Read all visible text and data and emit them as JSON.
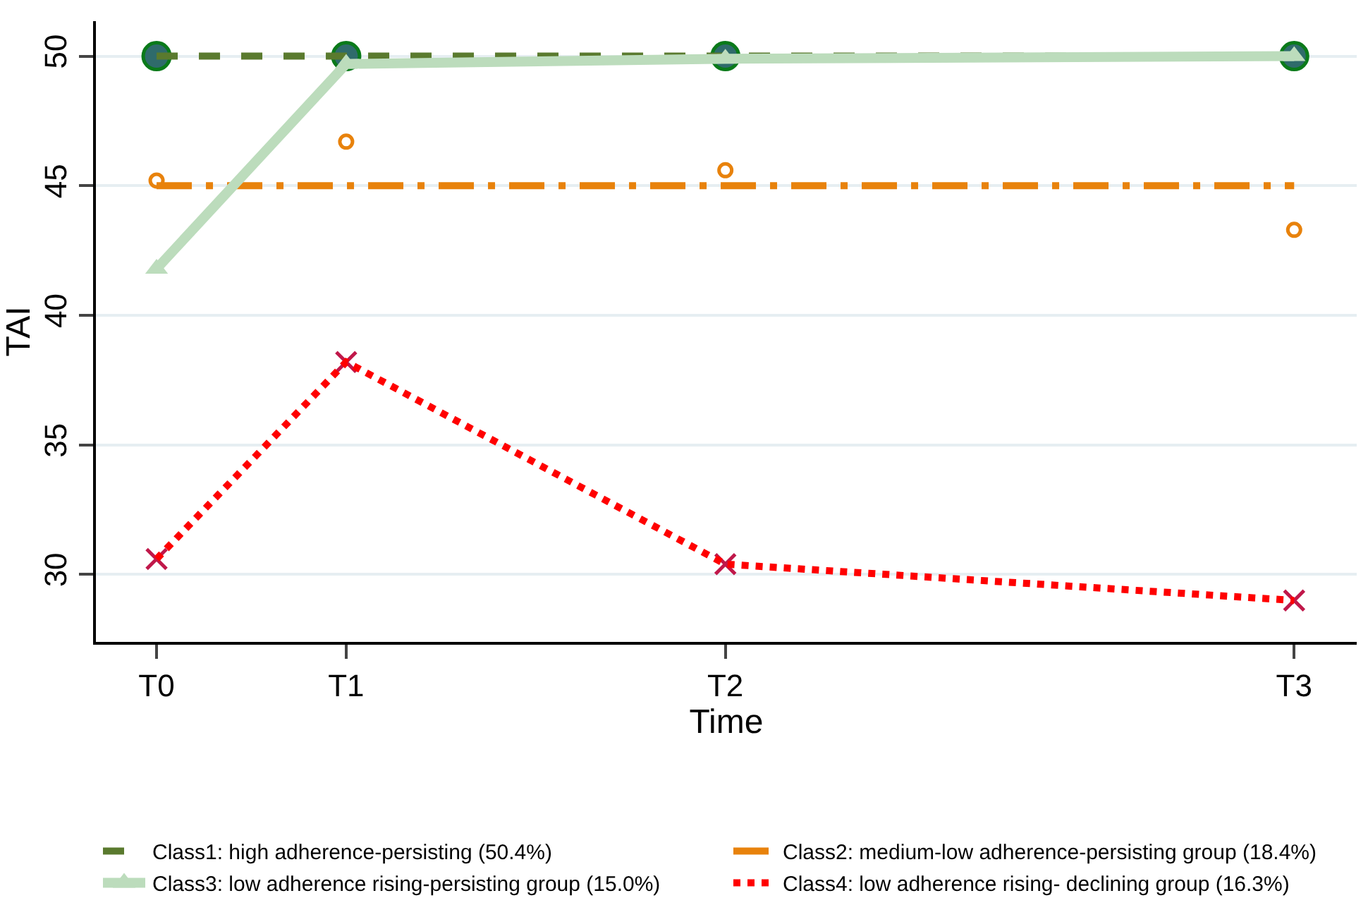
{
  "chart_data": {
    "type": "line",
    "xlabel": "Time",
    "ylabel": "TAI",
    "categories": [
      "T0",
      "T1",
      null,
      "T2",
      null,
      null,
      "T3"
    ],
    "ylim": [
      27.4,
      51.35
    ],
    "yticks": [
      30,
      35,
      40,
      45,
      50
    ],
    "grid": "y",
    "legend": "bottom",
    "series": [
      {
        "name": "Class1: high adherence-persisting (50.4%)",
        "color": "#5a7a2e",
        "values": [
          50,
          50,
          null,
          50,
          null,
          null,
          50
        ],
        "line_style": "dashed",
        "marker": "none"
      },
      {
        "name": "Class2: medium-low adherence-persisting group (18.4%)",
        "color": "#e8820c",
        "values": [
          45,
          45,
          null,
          45,
          null,
          null,
          45
        ],
        "line_style": "dashdot",
        "marker": "none"
      },
      {
        "name": "Class3: low adherence rising-persisting group (15.0%)",
        "color": "#bcdcbc",
        "values": [
          41.8,
          49.7,
          null,
          49.9,
          null,
          null,
          50
        ],
        "line_style": "solid",
        "marker": "triangle"
      },
      {
        "name": "Class4: low adherence rising- declining group (16.3%)",
        "color": "#ff0000",
        "values": [
          30.6,
          38.2,
          null,
          30.4,
          null,
          null,
          29.0
        ],
        "line_style": "dotted",
        "marker": "none"
      },
      {
        "type": "scatter",
        "color": "#2f6b6b",
        "values": [
          50,
          50,
          null,
          50,
          null,
          null,
          50
        ],
        "marker": "circle"
      },
      {
        "type": "scatter",
        "color": "#e8820c",
        "values": [
          45.2,
          46.7,
          null,
          45.6,
          null,
          null,
          43.3
        ],
        "marker": "circle-open"
      },
      {
        "type": "scatter",
        "color": "#c0184a",
        "values": [
          30.6,
          38.2,
          null,
          30.4,
          null,
          null,
          29.0
        ],
        "marker": "cross"
      }
    ]
  }
}
